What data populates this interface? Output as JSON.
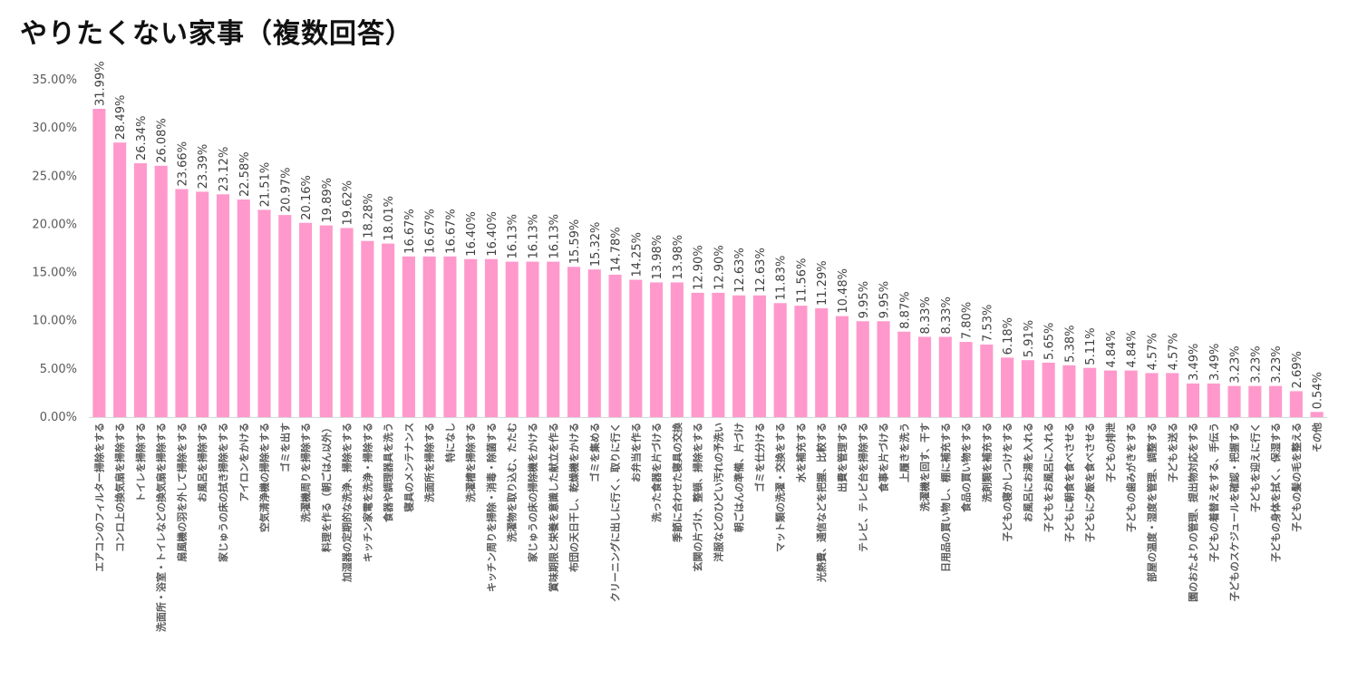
{
  "chart_data": {
    "type": "bar",
    "title": "やりたくない家事（複数回答）",
    "xlabel": "",
    "ylabel": "",
    "ylim": [
      0,
      35
    ],
    "yticks": [
      "0.00%",
      "5.00%",
      "10.00%",
      "15.00%",
      "20.00%",
      "25.00%",
      "30.00%",
      "35.00%"
    ],
    "grid": false,
    "bar_color": "#FF99CC",
    "categories": [
      "エアコンのフィルター掃除をする",
      "コンロ上の換気扇を掃除する",
      "トイレを掃除する",
      "洗面所・浴室・トイレなどの換気扇を掃除する",
      "扇風機の羽を外して掃除をする",
      "お風呂を掃除する",
      "家じゅうの床の拭き掃除をする",
      "アイロンをかける",
      "空気清浄機の掃除をする",
      "ゴミを出す",
      "洗濯機周りを掃除する",
      "料理を作る（朝ごはん以外）",
      "加湿器の定期的な洗浄、掃除をする",
      "キッチン家電を洗浄・掃除する",
      "食器や調理器具を洗う",
      "寝具のメンテナンス",
      "洗面所を掃除する",
      "特になし",
      "洗濯槽を掃除する",
      "キッチン周りを掃除・消毒・除菌する",
      "洗濯物を取り込む、たたむ",
      "家じゅうの床の掃除機をかける",
      "賞味期限と栄養を意識した献立を作る",
      "布団の天日干し、乾燥機をかける",
      "ゴミを集める",
      "クリーニングに出しに行く、取りに行く",
      "お弁当を作る",
      "洗った食器を片づける",
      "季節に合わせた寝具の交換",
      "玄関の片づけ、整頓、掃除をする",
      "洋服などのひどい汚れの予洗い",
      "朝ごはんの準備、片づけ",
      "ゴミを仕分ける",
      "マット類の洗濯・交換をする",
      "水を補充する",
      "光熱費、通信などを把握、比較する",
      "出費を管理する",
      "テレビ、テレビ台を掃除する",
      "食事を片づける",
      "上履きを洗う",
      "洗濯機を回す、干す",
      "日用品の買い物し、棚に補充する",
      "食品の買い物をする",
      "洗剤類を補充する",
      "子どもの寝かしつけをする",
      "お風呂にお湯を入れる",
      "子どもをお風呂に入れる",
      "子どもに朝食を食べさせる",
      "子どもに夕飯を食べさせる",
      "子どもの排泄",
      "子どもの歯みがきをする",
      "部屋の温度・湿度を管理、調整する",
      "子どもを送る",
      "園のおたよりの管理、提出物対応をする",
      "子どもの着替えをする、手伝う",
      "子どものスケジュールを確認・把握する",
      "子どもを迎えに行く",
      "子どもの身体を拭く、保湿する",
      "子どもの髪の毛を整える",
      "その他"
    ],
    "values": [
      31.99,
      28.49,
      26.34,
      26.08,
      23.66,
      23.39,
      23.12,
      22.58,
      21.51,
      20.97,
      20.16,
      19.89,
      19.62,
      18.28,
      18.01,
      16.67,
      16.67,
      16.67,
      16.4,
      16.4,
      16.13,
      16.13,
      16.13,
      15.59,
      15.32,
      14.78,
      14.25,
      13.98,
      13.98,
      12.9,
      12.9,
      12.63,
      12.63,
      11.83,
      11.56,
      11.29,
      10.48,
      9.95,
      9.95,
      8.87,
      8.33,
      8.33,
      7.8,
      7.53,
      6.18,
      5.91,
      5.65,
      5.38,
      5.11,
      4.84,
      4.84,
      4.57,
      4.57,
      3.49,
      3.49,
      3.23,
      3.23,
      3.23,
      2.69,
      0.54
    ],
    "data_labels": [
      "31.99%",
      "28.49%",
      "26.34%",
      "26.08%",
      "23.66%",
      "23.39%",
      "23.12%",
      "22.58%",
      "21.51%",
      "20.97%",
      "20.16%",
      "19.89%",
      "19.62%",
      "18.28%",
      "18.01%",
      "16.67%",
      "16.67%",
      "16.67%",
      "16.40%",
      "16.40%",
      "16.13%",
      "16.13%",
      "16.13%",
      "15.59%",
      "15.32%",
      "14.78%",
      "14.25%",
      "13.98%",
      "13.98%",
      "12.90%",
      "12.90%",
      "12.63%",
      "12.63%",
      "11.83%",
      "11.56%",
      "11.29%",
      "10.48%",
      "9.95%",
      "9.95%",
      "8.87%",
      "8.33%",
      "8.33%",
      "7.80%",
      "7.53%",
      "6.18%",
      "5.91%",
      "5.65%",
      "5.38%",
      "5.11%",
      "4.84%",
      "4.84%",
      "4.57%",
      "4.57%",
      "3.49%",
      "3.49%",
      "3.23%",
      "3.23%",
      "3.23%",
      "2.69%",
      "0.54%"
    ]
  }
}
